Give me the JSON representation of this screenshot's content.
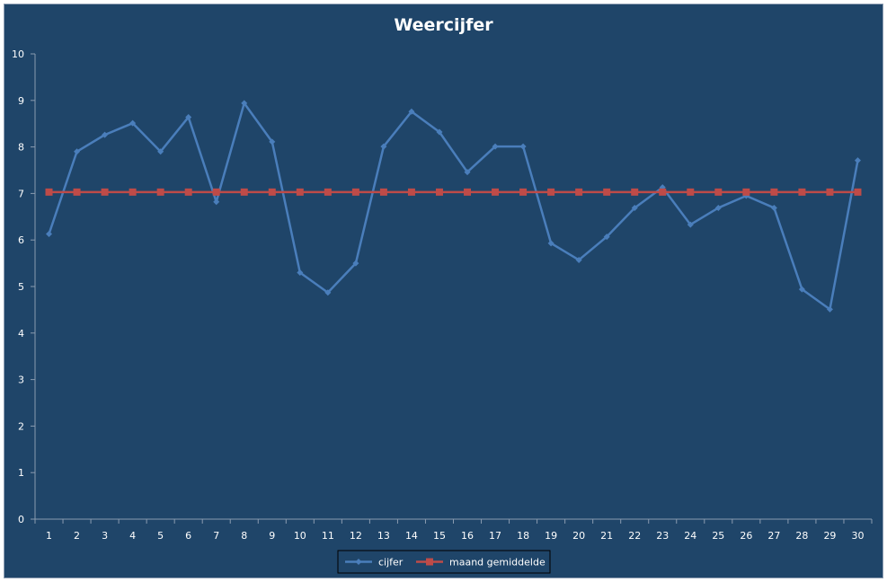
{
  "chart_data": {
    "type": "line",
    "title": "Weercijfer",
    "xlabel": "",
    "ylabel": "",
    "ylim": [
      0,
      10
    ],
    "yticks": [
      "0",
      "1",
      "2",
      "3",
      "4",
      "5",
      "6",
      "7",
      "8",
      "9",
      "10"
    ],
    "categories": [
      "1",
      "2",
      "3",
      "4",
      "5",
      "6",
      "7",
      "8",
      "9",
      "10",
      "11",
      "12",
      "13",
      "14",
      "15",
      "16",
      "17",
      "18",
      "19",
      "20",
      "21",
      "22",
      "23",
      "24",
      "25",
      "26",
      "27",
      "28",
      "29",
      "30"
    ],
    "grid": false,
    "legend_position": "bottom",
    "series": [
      {
        "name": "cijfer",
        "color": "#4a7ebb",
        "marker": "diamond",
        "values": [
          6.13,
          7.9,
          8.26,
          8.51,
          7.9,
          8.64,
          6.82,
          8.94,
          8.11,
          5.3,
          4.87,
          5.5,
          8.01,
          8.76,
          8.32,
          7.46,
          8.01,
          8.01,
          5.93,
          5.57,
          6.07,
          6.69,
          7.13,
          6.33,
          6.69,
          6.95,
          6.69,
          4.94,
          4.51,
          7.71
        ]
      },
      {
        "name": "maand gemiddelde",
        "color": "#be4b48",
        "marker": "square",
        "values": [
          7.03,
          7.03,
          7.03,
          7.03,
          7.03,
          7.03,
          7.03,
          7.03,
          7.03,
          7.03,
          7.03,
          7.03,
          7.03,
          7.03,
          7.03,
          7.03,
          7.03,
          7.03,
          7.03,
          7.03,
          7.03,
          7.03,
          7.03,
          7.03,
          7.03,
          7.03,
          7.03,
          7.03,
          7.03,
          7.03
        ]
      }
    ]
  },
  "colors": {
    "background": "#1f4569",
    "axis": "#8a9bb0",
    "text": "#ffffff"
  }
}
